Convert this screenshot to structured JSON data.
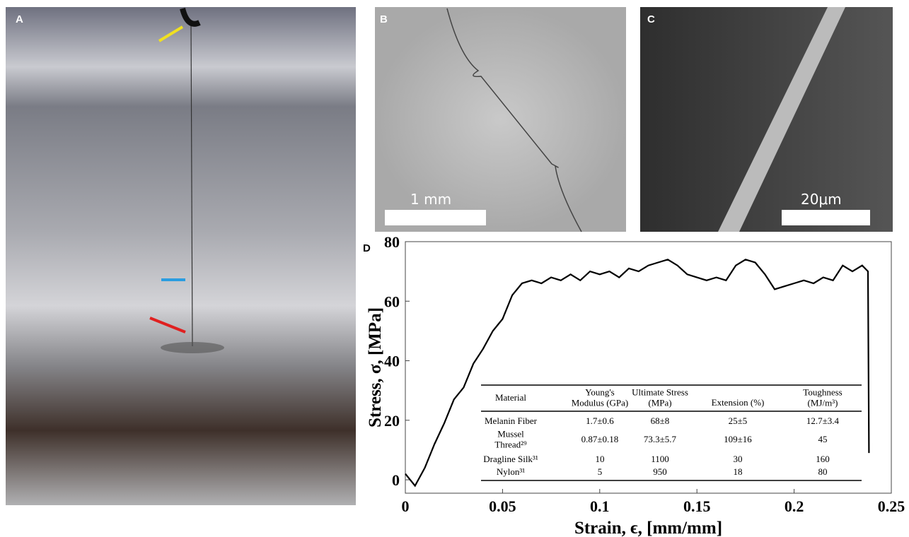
{
  "panels": {
    "a": "A",
    "b": "B",
    "c": "C",
    "d": "D"
  },
  "scale_bars": {
    "b": "1 mm",
    "c": "20μm"
  },
  "chart_data": {
    "type": "line",
    "xlabel": "Strain, ϵ, [mm/mm]",
    "ylabel": "Stress, σ, [MPa]",
    "xlim": [
      0,
      0.25
    ],
    "ylim": [
      -4.5,
      80
    ],
    "xticks": [
      0,
      0.05,
      0.1,
      0.15,
      0.2,
      0.25
    ],
    "yticks": [
      0,
      20,
      40,
      60,
      80
    ],
    "x": [
      0,
      0.005,
      0.01,
      0.015,
      0.02,
      0.025,
      0.03,
      0.035,
      0.04,
      0.045,
      0.05,
      0.055,
      0.06,
      0.065,
      0.07,
      0.075,
      0.08,
      0.085,
      0.09,
      0.095,
      0.1,
      0.105,
      0.11,
      0.115,
      0.12,
      0.125,
      0.13,
      0.135,
      0.14,
      0.145,
      0.15,
      0.155,
      0.16,
      0.165,
      0.17,
      0.175,
      0.18,
      0.185,
      0.19,
      0.195,
      0.2,
      0.205,
      0.21,
      0.215,
      0.22,
      0.225,
      0.23,
      0.235,
      0.238,
      0.2385
    ],
    "series": [
      {
        "color": "#000000",
        "values": [
          2,
          -2,
          4,
          12,
          19,
          27,
          31,
          39,
          44,
          50,
          54,
          62,
          66,
          67,
          66,
          68,
          67,
          69,
          67,
          70,
          69,
          70,
          68,
          71,
          70,
          72,
          73,
          74,
          72,
          69,
          68,
          67,
          68,
          67,
          72,
          74,
          73,
          69,
          64,
          65,
          66,
          67,
          66,
          68,
          67,
          72,
          70,
          72,
          70,
          9
        ]
      }
    ]
  },
  "table": {
    "header": [
      [
        "Material"
      ],
      [
        "Young's",
        "Modulus (GPa)"
      ],
      [
        "Ultimate Stress",
        "(MPa)"
      ],
      [
        "Extension (%)"
      ],
      [
        "Toughness",
        "(MJ/m³)"
      ]
    ],
    "rows": [
      [
        [
          "Melanin Fiber"
        ],
        [
          "1.7±0.6"
        ],
        [
          "68±8"
        ],
        [
          "25±5"
        ],
        [
          "12.7±3.4"
        ]
      ],
      [
        [
          "Mussel",
          "Thread²⁹"
        ],
        [
          "0.87±0.18"
        ],
        [
          "73.3±5.7"
        ],
        [
          "109±16"
        ],
        [
          "45"
        ]
      ],
      [
        [
          "Dragline Silk³¹"
        ],
        [
          "10"
        ],
        [
          "1100"
        ],
        [
          "30"
        ],
        [
          "160"
        ]
      ],
      [
        [
          "Nylon³¹"
        ],
        [
          "5"
        ],
        [
          "950"
        ],
        [
          "18"
        ],
        [
          "80"
        ]
      ]
    ]
  }
}
